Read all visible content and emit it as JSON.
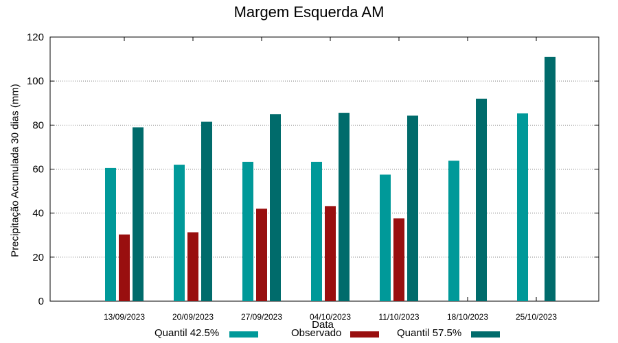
{
  "chart_data": {
    "type": "bar",
    "title": "Margem Esquerda AM",
    "xlabel": "Data",
    "ylabel": "Precipitação Acumulada 30 dias (mm)",
    "ylim": [
      0,
      120
    ],
    "yticks": [
      0,
      20,
      40,
      60,
      80,
      100,
      120
    ],
    "grid": true,
    "legend_position": "bottom",
    "categories": [
      "13/09/2023",
      "20/09/2023",
      "27/09/2023",
      "04/10/2023",
      "11/10/2023",
      "18/10/2023",
      "25/10/2023"
    ],
    "series": [
      {
        "name": "Quantil 42.5%",
        "color": "#009999",
        "values": [
          60.5,
          62,
          63.3,
          63.3,
          57.5,
          63.8,
          85.3
        ]
      },
      {
        "name": "Observado",
        "color": "#990f0f",
        "values": [
          30.3,
          31.3,
          42,
          43.2,
          37.6,
          null,
          null
        ]
      },
      {
        "name": "Quantil 57.5%",
        "color": "#006b6b",
        "values": [
          79,
          81.5,
          85,
          85.5,
          84.3,
          92,
          111
        ]
      }
    ]
  }
}
